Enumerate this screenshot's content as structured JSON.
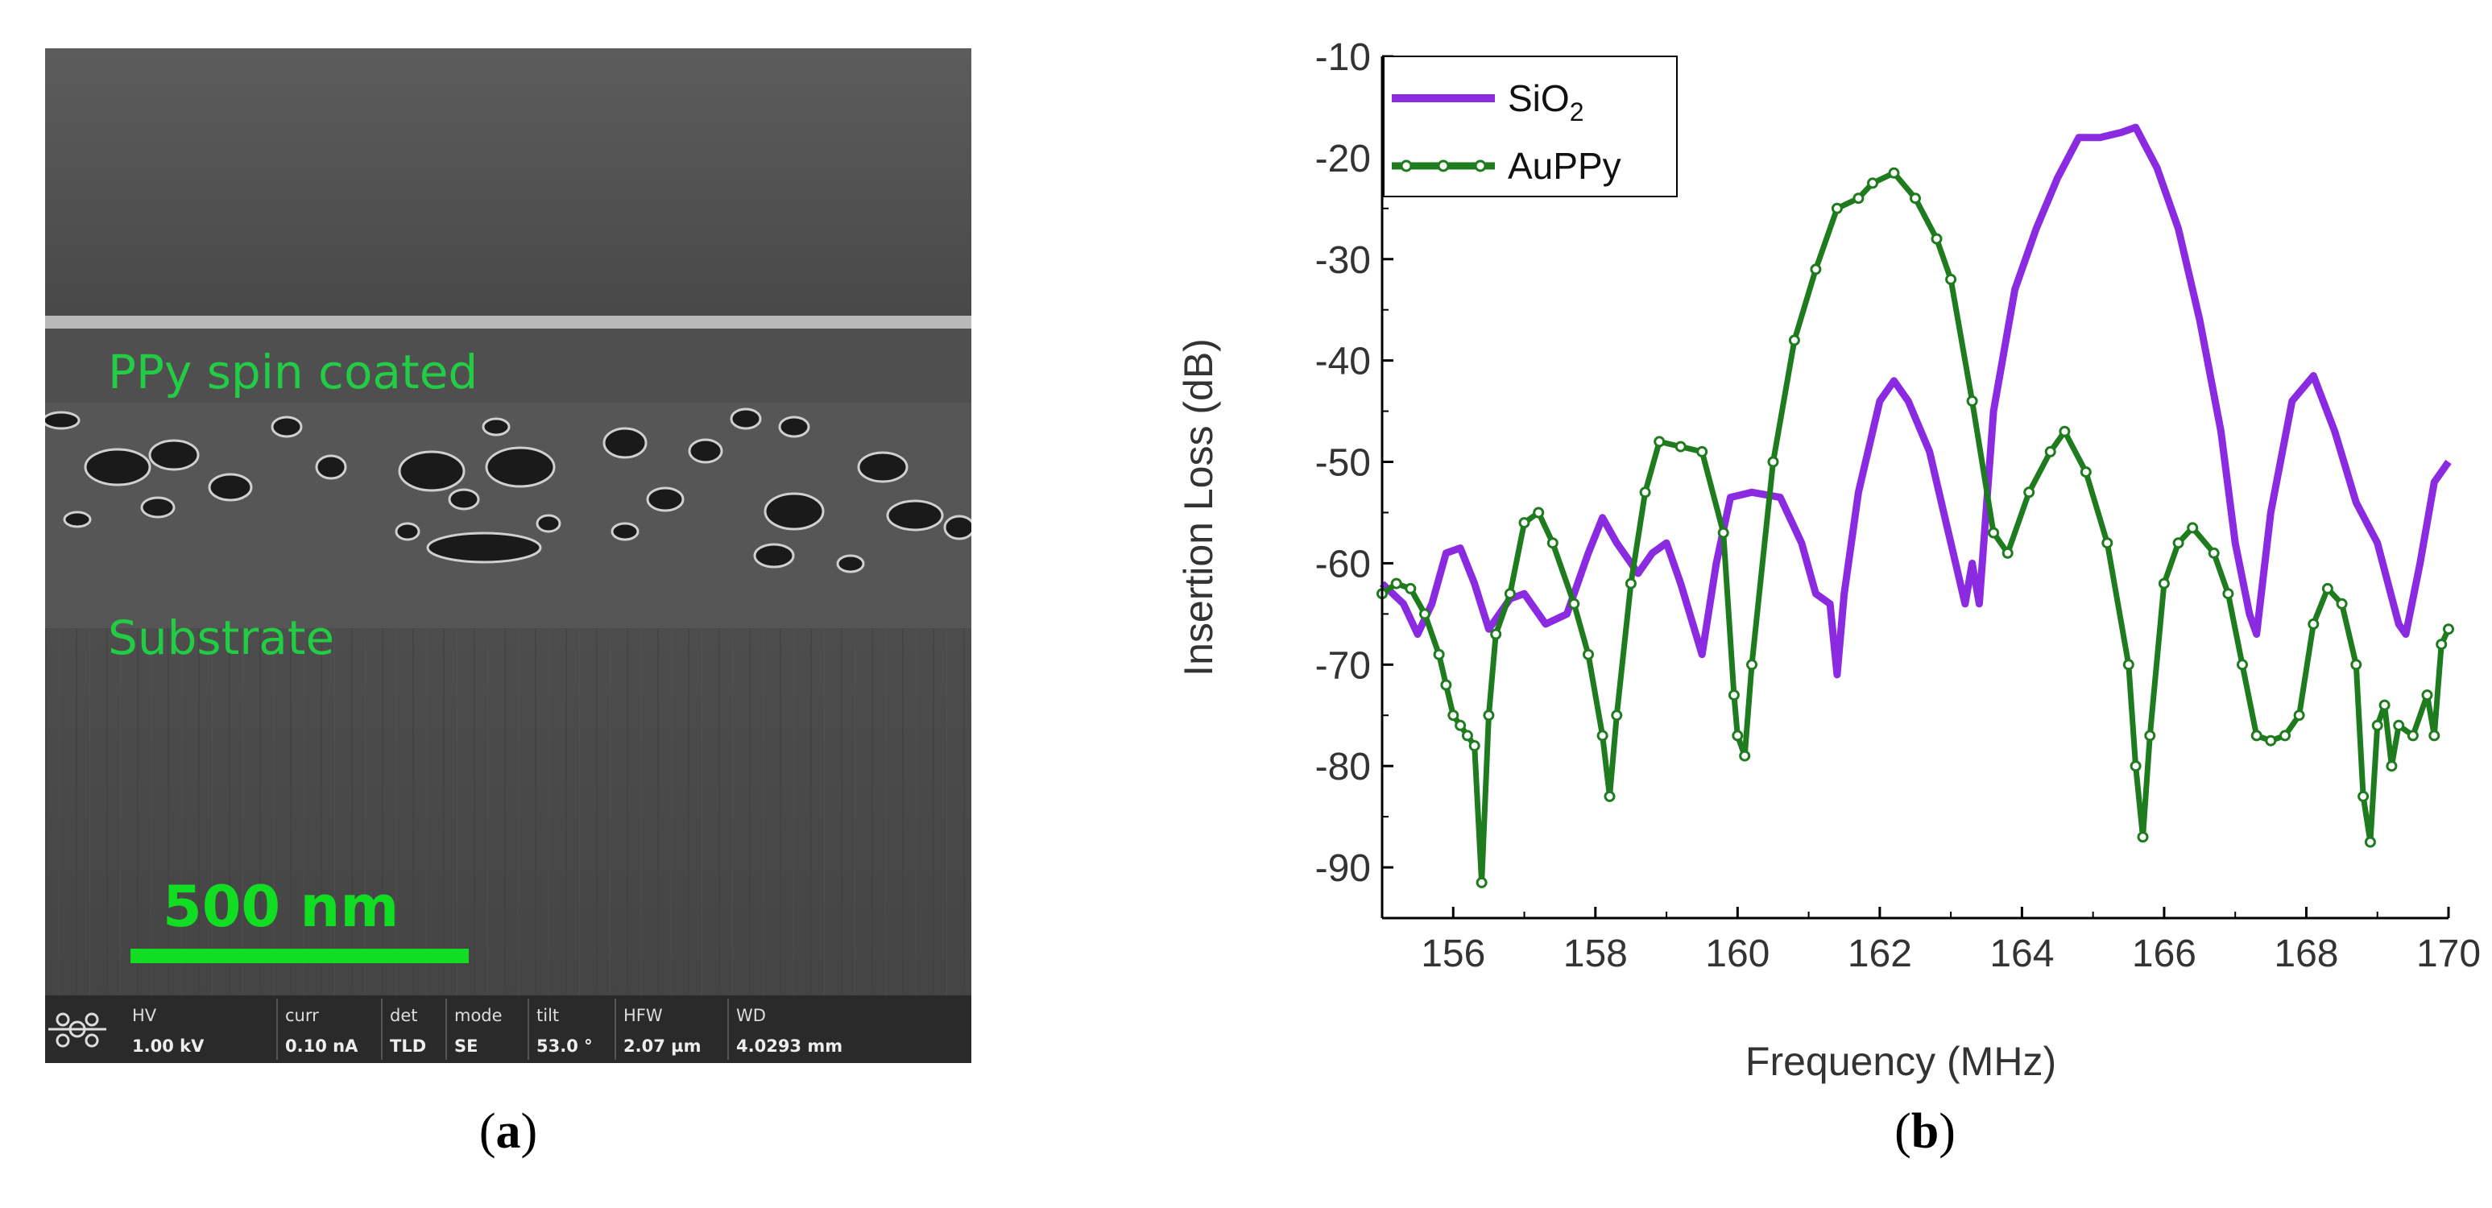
{
  "panel_a": {
    "label_prefix": "(",
    "label_letter": "a",
    "label_suffix": ")",
    "layer_label": "PPy spin coated",
    "substrate_label": "Substrate",
    "scale_bar_label": "500 nm",
    "colors": {
      "annotation": "#22cc44",
      "scale_bar": "#11dd22",
      "background": "#4a4a4a"
    },
    "info_bar": {
      "icon": "fei-logo-icon",
      "fields": [
        {
          "header": "HV",
          "value": "1.00 kV"
        },
        {
          "header": "curr",
          "value": "0.10 nA"
        },
        {
          "header": "det",
          "value": "TLD"
        },
        {
          "header": "mode",
          "value": "SE"
        },
        {
          "header": "tilt",
          "value": "53.0 °"
        },
        {
          "header": "HFW",
          "value": "2.07 µm"
        },
        {
          "header": "WD",
          "value": "4.0293 mm"
        }
      ]
    }
  },
  "panel_b": {
    "label_prefix": "(",
    "label_letter": "b",
    "label_suffix": ")"
  },
  "chart_data": {
    "type": "line",
    "title": "",
    "xlabel": "Frequency (MHz)",
    "ylabel": "Insertion Loss (dB)",
    "xlim": [
      155,
      170
    ],
    "ylim": [
      -95,
      -10
    ],
    "xticks": [
      156,
      158,
      160,
      162,
      164,
      166,
      168,
      170
    ],
    "yticks": [
      -10,
      -20,
      -30,
      -40,
      -50,
      -60,
      -70,
      -80,
      -90
    ],
    "legend_position": "top-left",
    "grid": false,
    "series": [
      {
        "name": "SiO2",
        "legend_main": "SiO",
        "legend_sub": "2",
        "color": "#8a2be2",
        "marker": "none",
        "points": [
          [
            155.0,
            -62
          ],
          [
            155.3,
            -64
          ],
          [
            155.5,
            -67
          ],
          [
            155.7,
            -64
          ],
          [
            155.9,
            -59
          ],
          [
            156.1,
            -58.5
          ],
          [
            156.3,
            -62
          ],
          [
            156.5,
            -66.5
          ],
          [
            156.8,
            -63.5
          ],
          [
            157.0,
            -63
          ],
          [
            157.3,
            -66
          ],
          [
            157.6,
            -65
          ],
          [
            157.9,
            -59
          ],
          [
            158.1,
            -55.5
          ],
          [
            158.3,
            -58
          ],
          [
            158.6,
            -61
          ],
          [
            158.8,
            -59
          ],
          [
            159.0,
            -58
          ],
          [
            159.2,
            -62
          ],
          [
            159.5,
            -69
          ],
          [
            159.7,
            -60
          ],
          [
            159.9,
            -53.5
          ],
          [
            160.2,
            -53
          ],
          [
            160.6,
            -53.5
          ],
          [
            160.9,
            -58
          ],
          [
            161.1,
            -63
          ],
          [
            161.3,
            -64
          ],
          [
            161.4,
            -71
          ],
          [
            161.5,
            -63
          ],
          [
            161.7,
            -53
          ],
          [
            162.0,
            -44
          ],
          [
            162.2,
            -42
          ],
          [
            162.4,
            -44
          ],
          [
            162.7,
            -49
          ],
          [
            162.9,
            -55
          ],
          [
            163.1,
            -61
          ],
          [
            163.2,
            -64
          ],
          [
            163.3,
            -60
          ],
          [
            163.4,
            -64
          ],
          [
            163.6,
            -45
          ],
          [
            163.9,
            -33
          ],
          [
            164.2,
            -27
          ],
          [
            164.5,
            -22
          ],
          [
            164.8,
            -18
          ],
          [
            165.1,
            -18
          ],
          [
            165.4,
            -17.5
          ],
          [
            165.6,
            -17
          ],
          [
            165.9,
            -21
          ],
          [
            166.2,
            -27
          ],
          [
            166.5,
            -36
          ],
          [
            166.8,
            -47
          ],
          [
            167.0,
            -58
          ],
          [
            167.2,
            -65
          ],
          [
            167.3,
            -67
          ],
          [
            167.5,
            -55
          ],
          [
            167.8,
            -44
          ],
          [
            168.1,
            -41.5
          ],
          [
            168.4,
            -47
          ],
          [
            168.7,
            -54
          ],
          [
            169.0,
            -58
          ],
          [
            169.3,
            -66
          ],
          [
            169.4,
            -67
          ],
          [
            169.6,
            -60
          ],
          [
            169.8,
            -52
          ],
          [
            170.0,
            -50
          ]
        ]
      },
      {
        "name": "AuPPy",
        "color": "#1e7b1e",
        "marker": "circle",
        "points": [
          [
            155.0,
            -63
          ],
          [
            155.2,
            -62
          ],
          [
            155.4,
            -62.5
          ],
          [
            155.6,
            -65
          ],
          [
            155.8,
            -69
          ],
          [
            155.9,
            -72
          ],
          [
            156.0,
            -75
          ],
          [
            156.1,
            -76
          ],
          [
            156.2,
            -77
          ],
          [
            156.3,
            -78
          ],
          [
            156.4,
            -91.5
          ],
          [
            156.5,
            -75
          ],
          [
            156.6,
            -67
          ],
          [
            156.8,
            -63
          ],
          [
            157.0,
            -56
          ],
          [
            157.2,
            -55
          ],
          [
            157.4,
            -58
          ],
          [
            157.7,
            -64
          ],
          [
            157.9,
            -69
          ],
          [
            158.1,
            -77
          ],
          [
            158.2,
            -83
          ],
          [
            158.3,
            -75
          ],
          [
            158.5,
            -62
          ],
          [
            158.7,
            -53
          ],
          [
            158.9,
            -48
          ],
          [
            159.2,
            -48.5
          ],
          [
            159.5,
            -49
          ],
          [
            159.8,
            -57
          ],
          [
            159.95,
            -73
          ],
          [
            160.0,
            -77
          ],
          [
            160.1,
            -79
          ],
          [
            160.2,
            -70
          ],
          [
            160.5,
            -50
          ],
          [
            160.8,
            -38
          ],
          [
            161.1,
            -31
          ],
          [
            161.4,
            -25
          ],
          [
            161.7,
            -24
          ],
          [
            161.9,
            -22.5
          ],
          [
            162.2,
            -21.5
          ],
          [
            162.5,
            -24
          ],
          [
            162.8,
            -28
          ],
          [
            163.0,
            -32
          ],
          [
            163.3,
            -44
          ],
          [
            163.6,
            -57
          ],
          [
            163.8,
            -59
          ],
          [
            164.1,
            -53
          ],
          [
            164.4,
            -49
          ],
          [
            164.6,
            -47
          ],
          [
            164.9,
            -51
          ],
          [
            165.2,
            -58
          ],
          [
            165.5,
            -70
          ],
          [
            165.6,
            -80
          ],
          [
            165.7,
            -87
          ],
          [
            165.8,
            -77
          ],
          [
            166.0,
            -62
          ],
          [
            166.2,
            -58
          ],
          [
            166.4,
            -56.5
          ],
          [
            166.7,
            -59
          ],
          [
            166.9,
            -63
          ],
          [
            167.1,
            -70
          ],
          [
            167.3,
            -77
          ],
          [
            167.5,
            -77.5
          ],
          [
            167.7,
            -77
          ],
          [
            167.9,
            -75
          ],
          [
            168.1,
            -66
          ],
          [
            168.3,
            -62.5
          ],
          [
            168.5,
            -64
          ],
          [
            168.7,
            -70
          ],
          [
            168.8,
            -83
          ],
          [
            168.9,
            -87.5
          ],
          [
            169.0,
            -76
          ],
          [
            169.1,
            -74
          ],
          [
            169.2,
            -80
          ],
          [
            169.3,
            -76
          ],
          [
            169.5,
            -77
          ],
          [
            169.7,
            -73
          ],
          [
            169.8,
            -77
          ],
          [
            169.9,
            -68
          ],
          [
            170.0,
            -66.5
          ]
        ]
      }
    ]
  }
}
